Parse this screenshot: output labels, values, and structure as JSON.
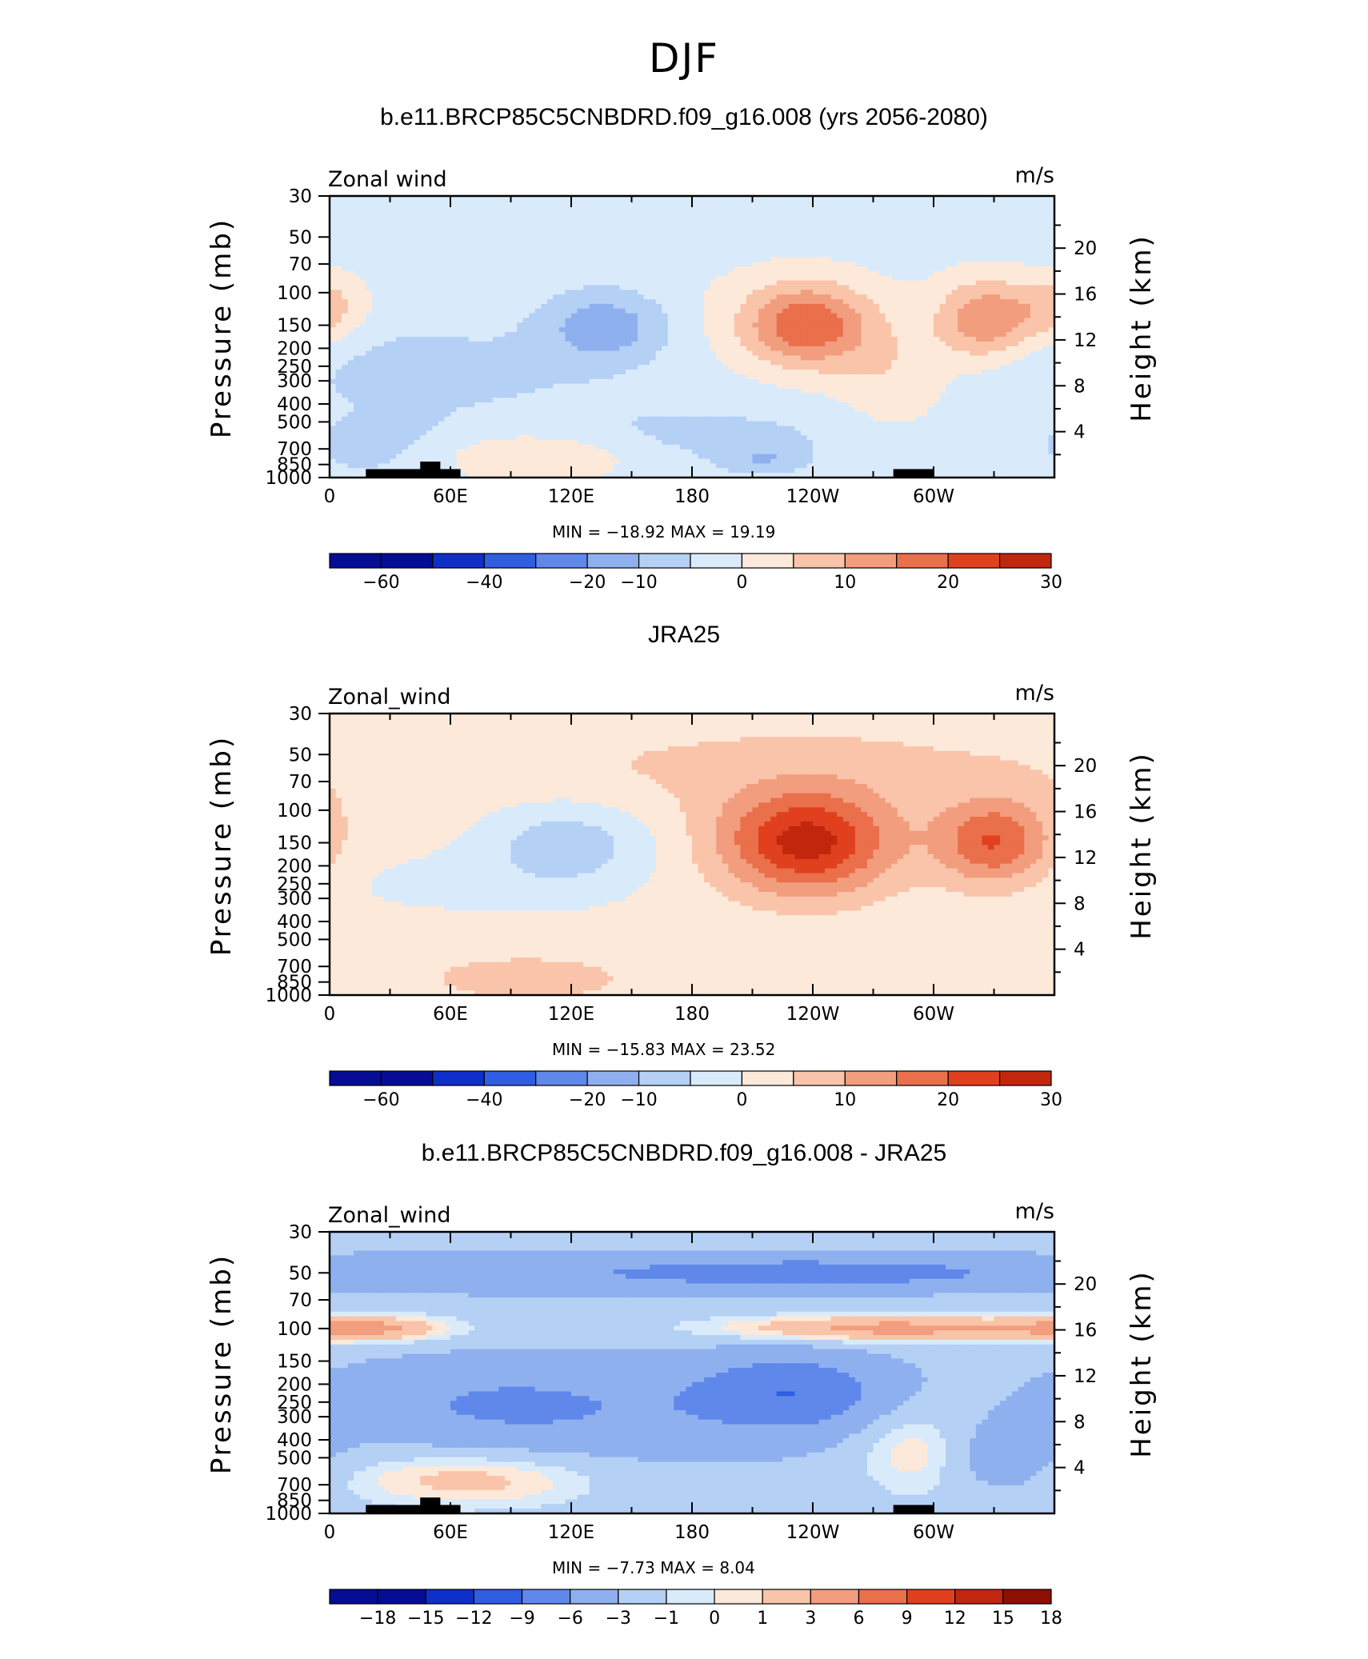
{
  "page_title": "DJF",
  "colors": {
    "positive_ramp": [
      "#fde9d9",
      "#f9c4a9",
      "#f29d7e",
      "#ea6f4b",
      "#e0401e",
      "#c1270d",
      "#8e0f04"
    ],
    "negative_ramp": [
      "#d9ebfb",
      "#b5d0f5",
      "#8fb0ef",
      "#5f88ea",
      "#2f5ee2",
      "#0f2fc9",
      "#040d94"
    ]
  },
  "panels": [
    {
      "title": "b.e11.BRCP85C5CNBDRD.f09_g16.008 (yrs 2056-2080)",
      "left_label": "Zonal wind",
      "right_label": "m/s",
      "ylabel": "Pressure (mb)",
      "y2label": "Height (km)",
      "minmax_text": "MIN = −18.92   MAX =  19.19",
      "colorbar_labels": [
        "−60",
        "−40",
        "−20",
        "−10",
        "0",
        "10",
        "20",
        "30"
      ]
    },
    {
      "title": "JRA25",
      "left_label": "Zonal_wind",
      "right_label": "m/s",
      "ylabel": "Pressure (mb)",
      "y2label": "Height (km)",
      "minmax_text": "MIN = −15.83   MAX =  23.52",
      "colorbar_labels": [
        "−60",
        "−40",
        "−20",
        "−10",
        "0",
        "10",
        "20",
        "30"
      ]
    },
    {
      "title": "b.e11.BRCP85C5CNBDRD.f09_g16.008 - JRA25",
      "left_label": "Zonal_wind",
      "right_label": "m/s",
      "ylabel": "Pressure (mb)",
      "y2label": "Height (km)",
      "minmax_text": "MIN =   −7.73   MAX =    8.04",
      "colorbar_labels": [
        "−18",
        "−15",
        "−12",
        "−9",
        "−6",
        "−3",
        "−1",
        "0",
        "1",
        "3",
        "6",
        "9",
        "12",
        "15",
        "18"
      ]
    }
  ],
  "chart_data": [
    {
      "type": "heatmap",
      "title": "b.e11.BRCP85C5CNBDRD.f09_g16.008 (yrs 2056-2080)",
      "x_ticks": [
        "0",
        "60E",
        "120E",
        "180",
        "120W",
        "60W"
      ],
      "x_tick_values": [
        0,
        60,
        120,
        180,
        240,
        300
      ],
      "xlim": [
        0,
        360
      ],
      "y_ticks": [
        "30",
        "50",
        "70",
        "100",
        "150",
        "200",
        "250",
        "300",
        "400",
        "500",
        "700",
        "850",
        "1000"
      ],
      "y_tick_values": [
        30,
        50,
        70,
        100,
        150,
        200,
        250,
        300,
        400,
        500,
        700,
        850,
        1000
      ],
      "ylim": [
        1000,
        30
      ],
      "y_scale": "log",
      "y2_ticks": [
        "4",
        "8",
        "12",
        "16",
        "20"
      ],
      "colorbar_levels": [
        -70,
        -60,
        -50,
        -40,
        -30,
        -20,
        -10,
        -5,
        0,
        5,
        10,
        15,
        20,
        25,
        30
      ],
      "min": -18.92,
      "max": 19.19,
      "features": [
        {
          "lon": 137,
          "p": 150,
          "sx": 22,
          "sy": 0.32,
          "v": -12
        },
        {
          "lon": 55,
          "p": 250,
          "sx": 70,
          "sy": 0.4,
          "v": -4
        },
        {
          "lon": 185,
          "p": 600,
          "sx": 60,
          "sy": 0.3,
          "v": -4
        },
        {
          "lon": 30,
          "p": 700,
          "sx": 30,
          "sy": 0.3,
          "v": -4
        },
        {
          "lon": 210,
          "p": 140,
          "sx": 90,
          "sy": 0.8,
          "v": 3
        },
        {
          "lon": 237,
          "p": 150,
          "sx": 22,
          "sy": 0.36,
          "v": 20
        },
        {
          "lon": 326,
          "p": 140,
          "sx": 17,
          "sy": 0.36,
          "v": 16
        },
        {
          "lon": 280,
          "p": 300,
          "sx": 20,
          "sy": 0.5,
          "v": 6
        },
        {
          "lon": 0,
          "p": 120,
          "sx": 14,
          "sy": 0.3,
          "v": 9
        },
        {
          "lon": 100,
          "p": 780,
          "sx": 38,
          "sy": 0.22,
          "v": 9
        },
        {
          "lon": 215,
          "p": 800,
          "sx": 12,
          "sy": 0.1,
          "v": -6
        }
      ],
      "background": -3,
      "show_topography": true
    },
    {
      "type": "heatmap",
      "title": "JRA25",
      "x_ticks": [
        "0",
        "60E",
        "120E",
        "180",
        "120W",
        "60W"
      ],
      "x_tick_values": [
        0,
        60,
        120,
        180,
        240,
        300
      ],
      "xlim": [
        0,
        360
      ],
      "y_ticks": [
        "30",
        "50",
        "70",
        "100",
        "150",
        "200",
        "250",
        "300",
        "400",
        "500",
        "700",
        "850",
        "1000"
      ],
      "y_tick_values": [
        30,
        50,
        70,
        100,
        150,
        200,
        250,
        300,
        400,
        500,
        700,
        850,
        1000
      ],
      "ylim": [
        1000,
        30
      ],
      "y_scale": "log",
      "y2_ticks": [
        "4",
        "8",
        "12",
        "16",
        "20"
      ],
      "colorbar_levels": [
        -70,
        -60,
        -50,
        -40,
        -30,
        -20,
        -10,
        -5,
        0,
        5,
        10,
        15,
        20,
        25,
        30
      ],
      "min": -15.83,
      "max": 23.52,
      "features": [
        {
          "lon": 118,
          "p": 150,
          "sx": 30,
          "sy": 0.38,
          "v": -10
        },
        {
          "lon": 60,
          "p": 250,
          "sx": 55,
          "sy": 0.3,
          "v": -3
        },
        {
          "lon": 180,
          "p": 600,
          "sx": 90,
          "sy": 0.35,
          "v": -1
        },
        {
          "lon": 237,
          "p": 150,
          "sx": 30,
          "sy": 0.45,
          "v": 25
        },
        {
          "lon": 330,
          "p": 150,
          "sx": 20,
          "sy": 0.38,
          "v": 18
        },
        {
          "lon": 230,
          "p": 60,
          "sx": 120,
          "sy": 0.45,
          "v": 4
        },
        {
          "lon": 100,
          "p": 800,
          "sx": 40,
          "sy": 0.22,
          "v": 6
        }
      ],
      "background": 2,
      "show_topography": false
    },
    {
      "type": "heatmap",
      "title": "b.e11.BRCP85C5CNBDRD.f09_g16.008 - JRA25",
      "x_ticks": [
        "0",
        "60E",
        "120E",
        "180",
        "120W",
        "60W"
      ],
      "x_tick_values": [
        0,
        60,
        120,
        180,
        240,
        300
      ],
      "xlim": [
        0,
        360
      ],
      "y_ticks": [
        "30",
        "50",
        "70",
        "100",
        "150",
        "200",
        "250",
        "300",
        "400",
        "500",
        "700",
        "850",
        "1000"
      ],
      "y_tick_values": [
        30,
        50,
        70,
        100,
        150,
        200,
        250,
        300,
        400,
        500,
        700,
        850,
        1000
      ],
      "ylim": [
        1000,
        30
      ],
      "y_scale": "log",
      "y2_ticks": [
        "4",
        "8",
        "12",
        "16",
        "20"
      ],
      "colorbar_levels": [
        -21,
        -18,
        -15,
        -12,
        -9,
        -6,
        -3,
        -1,
        0,
        1,
        3,
        6,
        9,
        12,
        15,
        18
      ],
      "min": -7.73,
      "max": 8.04,
      "features": [
        {
          "lon": 180,
          "p": 50,
          "sx": 200,
          "sy": 0.2,
          "v": -3
        },
        {
          "lon": 240,
          "p": 50,
          "sx": 60,
          "sy": 0.1,
          "v": -4
        },
        {
          "lon": 230,
          "p": 220,
          "sx": 35,
          "sy": 0.35,
          "v": -6
        },
        {
          "lon": 80,
          "p": 250,
          "sx": 60,
          "sy": 0.4,
          "v": -3
        },
        {
          "lon": 140,
          "p": 300,
          "sx": 80,
          "sy": 0.5,
          "v": -2
        },
        {
          "lon": 20,
          "p": 100,
          "sx": 30,
          "sy": 0.12,
          "v": 5
        },
        {
          "lon": 275,
          "p": 100,
          "sx": 60,
          "sy": 0.12,
          "v": 6
        },
        {
          "lon": 70,
          "p": 650,
          "sx": 45,
          "sy": 0.25,
          "v": 4
        },
        {
          "lon": 290,
          "p": 450,
          "sx": 20,
          "sy": 0.4,
          "v": 3
        },
        {
          "lon": 335,
          "p": 500,
          "sx": 20,
          "sy": 0.3,
          "v": -3
        }
      ],
      "background": -2,
      "show_topography": true
    }
  ]
}
